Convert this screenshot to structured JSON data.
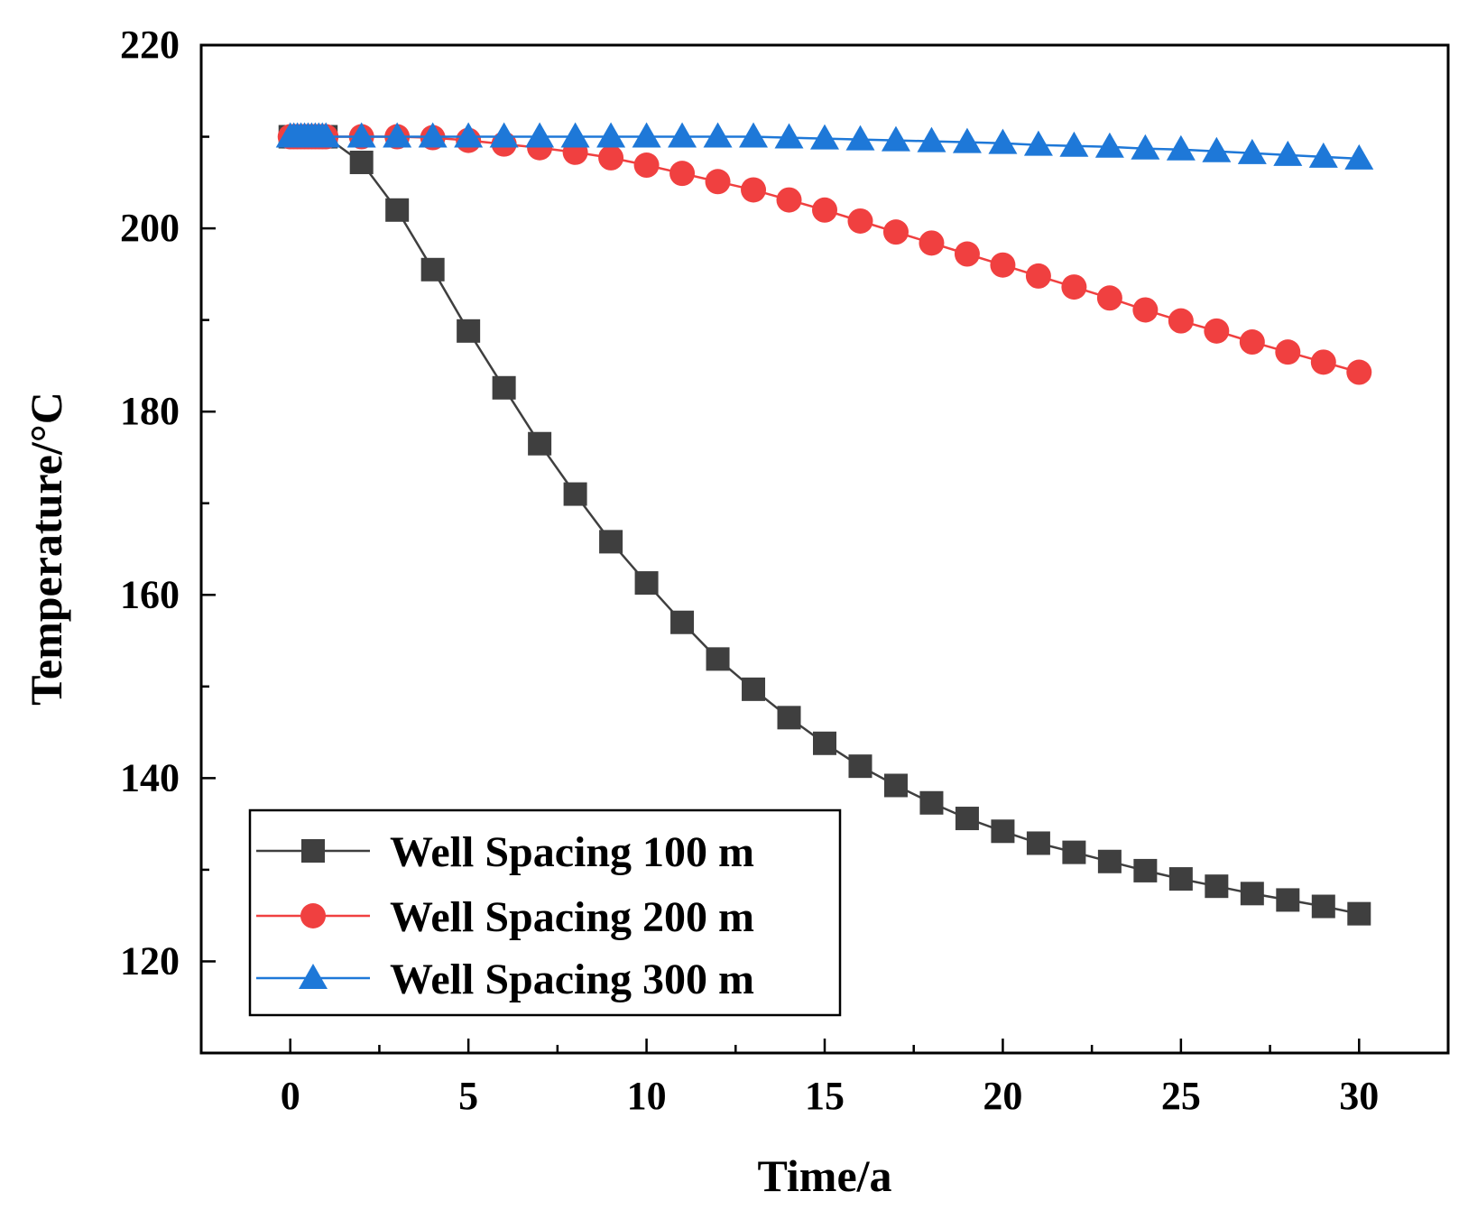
{
  "chart_data": {
    "type": "line",
    "title": "",
    "xlabel": "Time/a",
    "ylabel": "Temperature/°C",
    "xlim": [
      -2.5,
      32.5
    ],
    "ylim": [
      110,
      220
    ],
    "x_ticks": [
      0,
      5,
      10,
      15,
      20,
      25,
      30
    ],
    "x_minor_ticks": [
      0,
      2.5,
      5,
      7.5,
      10,
      12.5,
      15,
      17.5,
      20,
      22.5,
      25,
      27.5,
      30
    ],
    "y_ticks": [
      120,
      140,
      160,
      180,
      200,
      220
    ],
    "y_minor_ticks": [
      110,
      120,
      130,
      140,
      150,
      160,
      170,
      180,
      190,
      200,
      210,
      220
    ],
    "x_tick_labels": [
      "0",
      "5",
      "10",
      "15",
      "20",
      "25",
      "30"
    ],
    "y_tick_labels": [
      "120",
      "140",
      "160",
      "180",
      "200",
      "220"
    ],
    "grid": false,
    "legend_position": "bottom-left",
    "series": [
      {
        "name": "Well Spacing 100 m",
        "color": "#3f3f3f",
        "marker": "square",
        "x": [
          0,
          0.1,
          0.2,
          0.3,
          0.4,
          0.5,
          0.6,
          0.7,
          0.8,
          0.9,
          1,
          2,
          3,
          4,
          5,
          6,
          7,
          8,
          9,
          10,
          11,
          12,
          13,
          14,
          15,
          16,
          17,
          18,
          19,
          20,
          21,
          22,
          23,
          24,
          25,
          26,
          27,
          28,
          29,
          30
        ],
        "y": [
          210,
          210,
          210,
          210,
          210,
          210,
          210,
          210,
          210,
          210,
          210,
          207.2,
          202,
          195.5,
          188.8,
          182.6,
          176.5,
          171,
          165.8,
          161.3,
          157,
          153,
          149.7,
          146.6,
          143.8,
          141.3,
          139.2,
          137.3,
          135.6,
          134.2,
          132.9,
          131.9,
          130.9,
          129.9,
          129,
          128.2,
          127.4,
          126.7,
          126,
          125.2
        ]
      },
      {
        "name": "Well Spacing 200 m",
        "color": "#f04040",
        "marker": "circle",
        "x": [
          0,
          0.1,
          0.2,
          0.3,
          0.4,
          0.5,
          0.6,
          0.7,
          0.8,
          0.9,
          1,
          2,
          3,
          4,
          5,
          6,
          7,
          8,
          9,
          10,
          11,
          12,
          13,
          14,
          15,
          16,
          17,
          18,
          19,
          20,
          21,
          22,
          23,
          24,
          25,
          26,
          27,
          28,
          29,
          30
        ],
        "y": [
          210,
          210,
          210,
          210,
          210,
          210,
          210,
          210,
          210,
          210,
          210,
          210,
          210,
          209.9,
          209.6,
          209.2,
          208.8,
          208.3,
          207.7,
          206.9,
          206,
          205.1,
          204.2,
          203.1,
          202,
          200.8,
          199.6,
          198.4,
          197.2,
          196,
          194.8,
          193.6,
          192.4,
          191.1,
          189.9,
          188.8,
          187.6,
          186.5,
          185.4,
          184.3
        ]
      },
      {
        "name": "Well Spacing 300 m",
        "color": "#1e78d8",
        "marker": "triangle",
        "x": [
          0,
          0.1,
          0.2,
          0.3,
          0.4,
          0.5,
          0.6,
          0.7,
          0.8,
          0.9,
          1,
          2,
          3,
          4,
          5,
          6,
          7,
          8,
          9,
          10,
          11,
          12,
          13,
          14,
          15,
          16,
          17,
          18,
          19,
          20,
          21,
          22,
          23,
          24,
          25,
          26,
          27,
          28,
          29,
          30
        ],
        "y": [
          210,
          210,
          210,
          210,
          210,
          210,
          210,
          210,
          210,
          210,
          210,
          210,
          210,
          210,
          210,
          210,
          210,
          210,
          210,
          210,
          210,
          210,
          210,
          209.9,
          209.8,
          209.7,
          209.6,
          209.5,
          209.4,
          209.3,
          209.1,
          209,
          208.9,
          208.7,
          208.6,
          208.4,
          208.2,
          208,
          207.8,
          207.6
        ]
      }
    ]
  }
}
